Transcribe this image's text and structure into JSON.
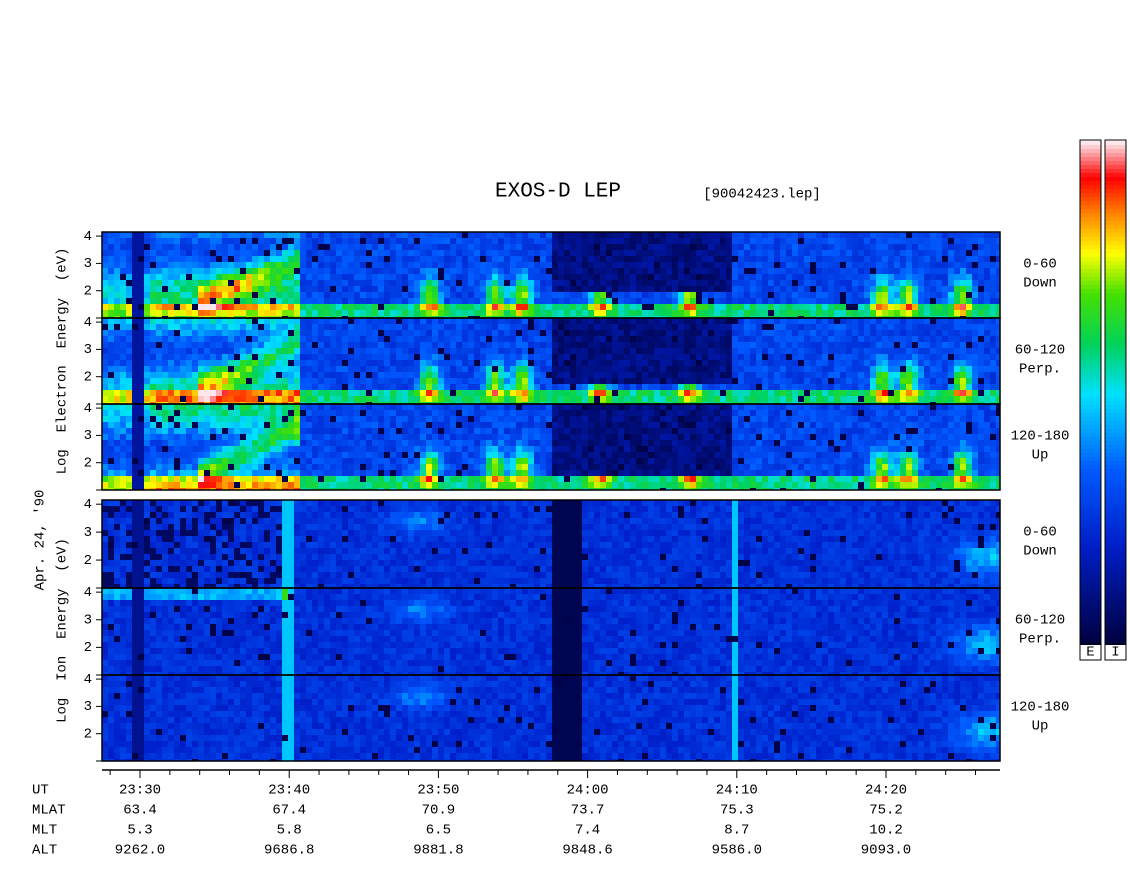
{
  "header": {
    "title": "EXOS-D LEP",
    "file": "[90042423.lep]"
  },
  "colorbars": [
    "E",
    "I"
  ],
  "date": "Apr. 24, '90",
  "groups": [
    {
      "label": "Log  Electron  Energy  (eV)",
      "panels": [
        {
          "label": [
            "0-60",
            "Down"
          ],
          "yticks": [
            "2",
            "3",
            "4"
          ]
        },
        {
          "label": [
            "60-120",
            "Perp."
          ],
          "yticks": [
            "2",
            "3",
            "4"
          ]
        },
        {
          "label": [
            "120-180",
            "Up"
          ],
          "yticks": [
            "2",
            "3",
            "4"
          ]
        }
      ]
    },
    {
      "label": "Log  Ion  Energy  (eV)",
      "panels": [
        {
          "label": [
            "0-60",
            "Down"
          ],
          "yticks": [
            "2",
            "3",
            "4"
          ]
        },
        {
          "label": [
            "60-120",
            "Perp."
          ],
          "yticks": [
            "2",
            "3",
            "4"
          ]
        },
        {
          "label": [
            "120-180",
            "Up"
          ],
          "yticks": [
            "2",
            "3",
            "4"
          ]
        }
      ]
    }
  ],
  "x_axis": {
    "rows": [
      {
        "label": "UT",
        "values": [
          "23:30",
          "23:40",
          "23:50",
          "24:00",
          "24:10",
          "24:20"
        ]
      },
      {
        "label": "MLAT",
        "values": [
          "63.4",
          "67.4",
          "70.9",
          "73.7",
          "75.3",
          "75.2"
        ]
      },
      {
        "label": "MLT",
        "values": [
          "5.3",
          "5.8",
          "6.5",
          "7.4",
          "8.7",
          "10.2"
        ]
      },
      {
        "label": "ALT",
        "values": [
          "9262.0",
          "9686.8",
          "9881.8",
          "9848.6",
          "9586.0",
          "9093.0"
        ]
      }
    ]
  }
}
